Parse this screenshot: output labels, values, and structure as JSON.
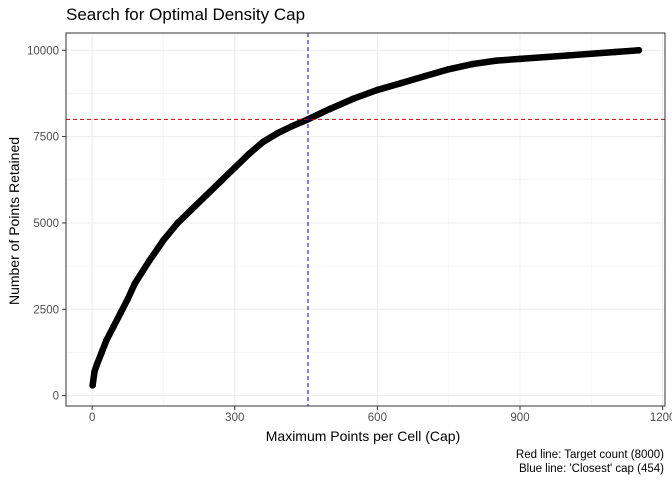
{
  "chart_data": {
    "type": "scatter",
    "title": "Search for Optimal Density Cap",
    "xlabel": "Maximum Points per Cell (Cap)",
    "ylabel": "Number of Points Retained",
    "xlim": [
      -55,
      1205
    ],
    "ylim": [
      -300,
      10500
    ],
    "x_ticks": [
      0,
      300,
      600,
      900,
      1200
    ],
    "y_ticks": [
      0,
      2500,
      5000,
      7500,
      10000
    ],
    "x_tick_labels": [
      "0",
      "300",
      "600",
      "900",
      "1200"
    ],
    "y_tick_labels": [
      "0",
      "2500",
      "5000",
      "7500",
      "10000"
    ],
    "grid": true,
    "series": [
      {
        "color": "#000000",
        "x": [
          1,
          5,
          10,
          20,
          30,
          45,
          60,
          75,
          90,
          120,
          150,
          180,
          210,
          240,
          270,
          300,
          330,
          360,
          390,
          420,
          454,
          500,
          550,
          600,
          650,
          700,
          750,
          800,
          850,
          900,
          1000,
          1100,
          1150
        ],
        "y": [
          300,
          700,
          900,
          1250,
          1600,
          2000,
          2400,
          2800,
          3250,
          3900,
          4500,
          5000,
          5400,
          5800,
          6200,
          6600,
          7000,
          7350,
          7600,
          7800,
          8000,
          8300,
          8600,
          8850,
          9050,
          9250,
          9450,
          9600,
          9700,
          9750,
          9850,
          9950,
          10000
        ]
      }
    ],
    "reference_lines": [
      {
        "orientation": "horizontal",
        "value": 8000,
        "color": "#cc0000",
        "style": "dashed"
      },
      {
        "orientation": "vertical",
        "value": 454,
        "color": "#0000cc",
        "style": "dashed"
      }
    ],
    "captions": [
      "Red line: Target count (8000)",
      "Blue line: 'Closest' cap (454)"
    ]
  }
}
